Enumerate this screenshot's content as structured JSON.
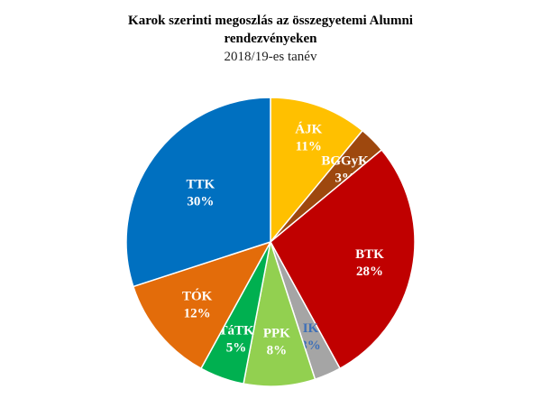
{
  "chart_data": {
    "type": "pie",
    "title_line1": "Karok szerinti megoszlás az összegyetemi Alumni",
    "title_line2": "rendezvényeken",
    "subtitle": "2018/19-es tanév",
    "start_angle_deg": 0,
    "direction": "clockwise",
    "legend": "none",
    "slices": [
      {
        "name": "ÁJK",
        "value": 11,
        "label": "11%",
        "color": "#ffc000",
        "label_color": "#ffffff"
      },
      {
        "name": "BGGyK",
        "value": 3,
        "label": "3%",
        "color": "#9e480e",
        "label_color": "#ffffff"
      },
      {
        "name": "BTK",
        "value": 28,
        "label": "28%",
        "color": "#c00000",
        "label_color": "#ffffff"
      },
      {
        "name": "IK",
        "value": 3,
        "label": "3%",
        "color": "#a5a5a5",
        "label_color": "#3d6fb8"
      },
      {
        "name": "PPK",
        "value": 8,
        "label": "8%",
        "color": "#92d050",
        "label_color": "#ffffff"
      },
      {
        "name": "TáTK",
        "value": 5,
        "label": "5%",
        "color": "#00b050",
        "label_color": "#ffffff"
      },
      {
        "name": "TÓK",
        "value": 12,
        "label": "12%",
        "color": "#e36c0a",
        "label_color": "#ffffff"
      },
      {
        "name": "TTK",
        "value": 30,
        "label": "30%",
        "color": "#0070c0",
        "label_color": "#ffffff"
      }
    ]
  }
}
